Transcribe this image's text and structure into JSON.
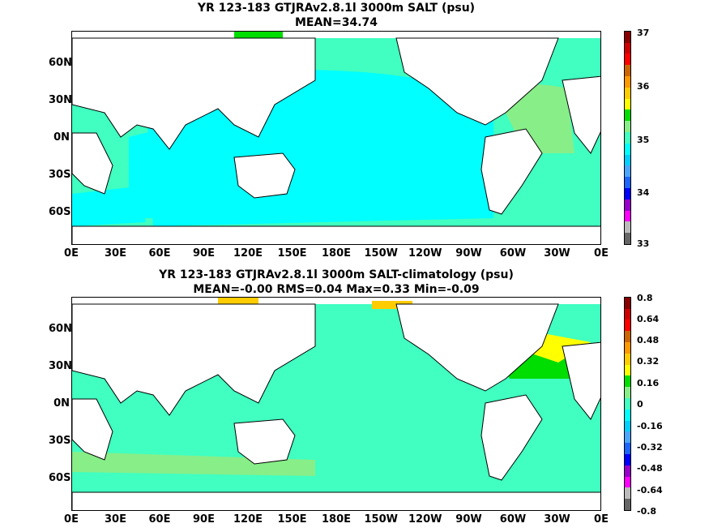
{
  "panel1": {
    "title_line1": "YR 123-183 GTJRAv2.8.1l 3000m SALT (psu)",
    "title_line2": "MEAN=34.74",
    "colorbar_labels": [
      "33",
      "34",
      "35",
      "36",
      "37"
    ],
    "colorbar_colors": [
      "#666666",
      "#bbbbbb",
      "#ff00ff",
      "#9900cc",
      "#0000ff",
      "#1e64ff",
      "#4aa6ff",
      "#00cfff",
      "#00ffff",
      "#40ffc0",
      "#88ee88",
      "#00dd00",
      "#ffff00",
      "#ffcc00",
      "#ff9900",
      "#cc6600",
      "#ff0000",
      "#cc0000",
      "#880000"
    ]
  },
  "panel2": {
    "title_line1": "YR 123-183 GTJRAv2.8.1l 3000m SALT-climatology (psu)",
    "title_line2": "MEAN=-0.00   RMS=0.04   Max=0.33   Min=-0.09",
    "colorbar_labels": [
      "-0.8",
      "-0.64",
      "-0.48",
      "-0.32",
      "-0.16",
      "0",
      "0.16",
      "0.32",
      "0.48",
      "0.64",
      "0.8"
    ],
    "colorbar_colors": [
      "#666666",
      "#bbbbbb",
      "#ff00ff",
      "#9900cc",
      "#0000ff",
      "#1e64ff",
      "#4aa6ff",
      "#00cfff",
      "#00ffff",
      "#40ffc0",
      "#88ee88",
      "#00dd00",
      "#ffff00",
      "#ffcc00",
      "#ff9900",
      "#cc6600",
      "#ff0000",
      "#cc0000",
      "#880000"
    ]
  },
  "map": {
    "x_ticks": [
      "0E",
      "30E",
      "60E",
      "90E",
      "120E",
      "150E",
      "180E",
      "150W",
      "120W",
      "90W",
      "60W",
      "30W",
      "0E"
    ],
    "y_ticks": [
      "60N",
      "30N",
      "0N",
      "30S",
      "60S"
    ],
    "colors": {
      "ocean_fresh": "#00ffff",
      "ocean_mid": "#40ffc0",
      "ocean_salty": "#88ee88",
      "ocean_high": "#00dd00",
      "anom_pos": "#ffff00",
      "anom_orange": "#ffcc00",
      "land": "#ffffff"
    }
  }
}
